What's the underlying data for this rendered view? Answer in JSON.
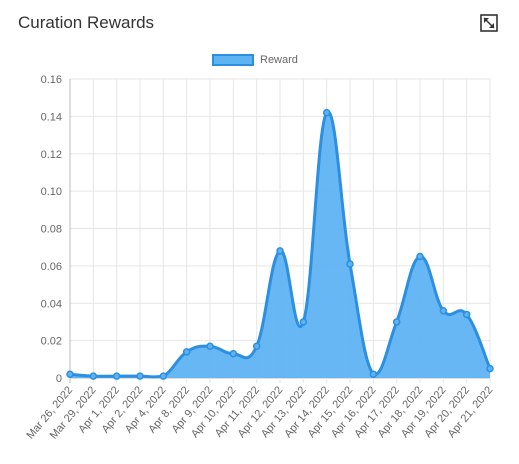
{
  "card": {
    "title": "Curation Rewards",
    "expand_icon": "expand-icon"
  },
  "chart_data": {
    "type": "area",
    "categories": [
      "Mar 26, 2022",
      "Mar 29, 2022",
      "Apr 1, 2022",
      "Apr 2, 2022",
      "Apr 4, 2022",
      "Apr 8, 2022",
      "Apr 9, 2022",
      "Apr 10, 2022",
      "Apr 11, 2022",
      "Apr 12, 2022",
      "Apr 13, 2022",
      "Apr 14, 2022",
      "Apr 15, 2022",
      "Apr 16, 2022",
      "Apr 17, 2022",
      "Apr 18, 2022",
      "Apr 19, 2022",
      "Apr 20, 2022",
      "Apr 21, 2022"
    ],
    "series": [
      {
        "name": "Reward",
        "values": [
          0.002,
          0.001,
          0.001,
          0.001,
          0.001,
          0.014,
          0.017,
          0.013,
          0.017,
          0.068,
          0.03,
          0.142,
          0.061,
          0.002,
          0.03,
          0.065,
          0.036,
          0.034,
          0.005
        ]
      }
    ],
    "ylim": [
      0,
      0.16
    ],
    "yticks": [
      "0",
      "0.02",
      "0.04",
      "0.06",
      "0.08",
      "0.10",
      "0.12",
      "0.14",
      "0.16"
    ],
    "legend_position": "top",
    "grid": true,
    "colors": {
      "fill": "#5eb3f3",
      "line": "#2c8fe0"
    }
  }
}
